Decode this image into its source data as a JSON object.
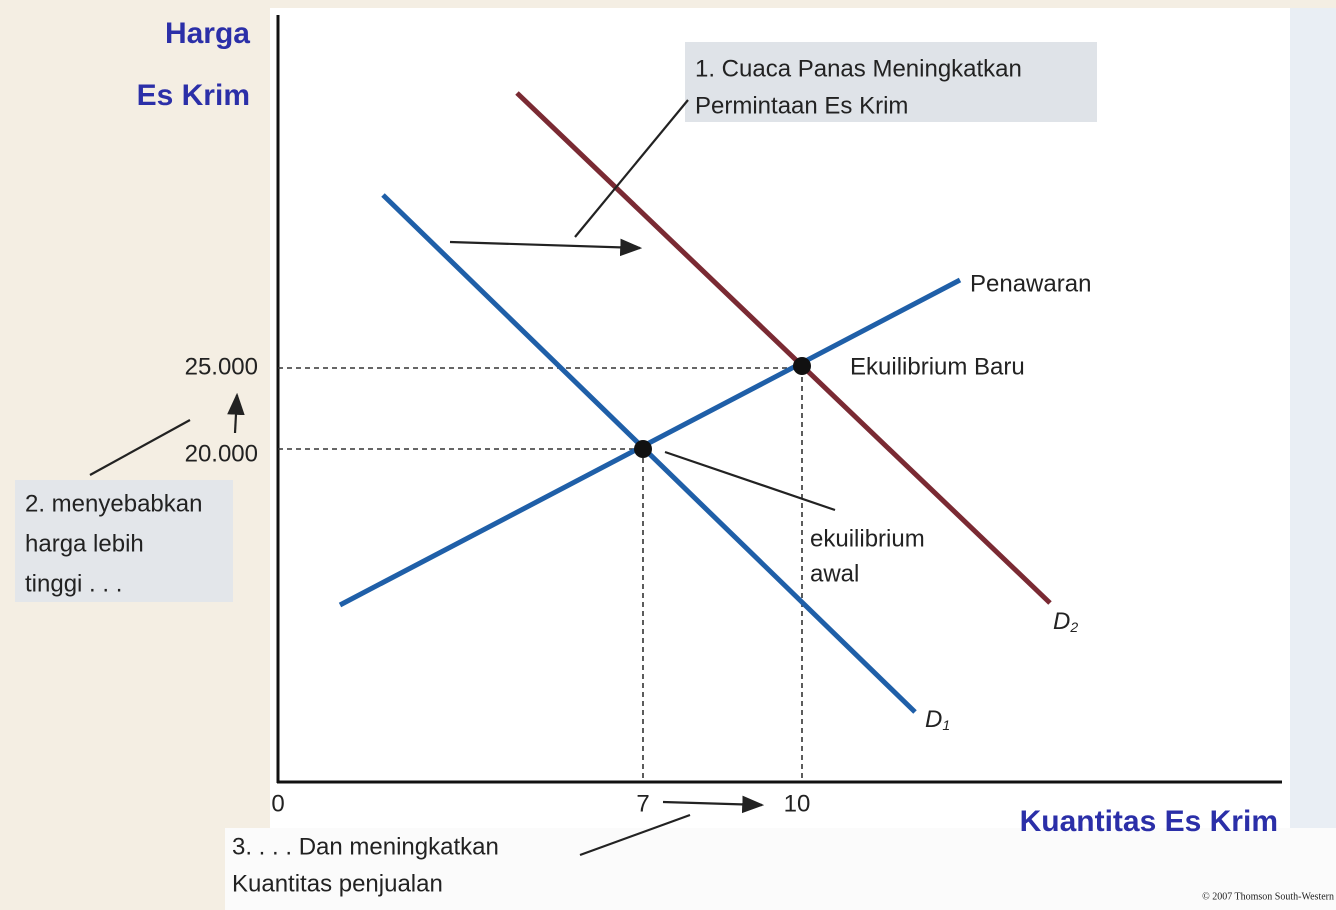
{
  "axes": {
    "y_title": [
      "Harga",
      "Es Krim"
    ],
    "x_title": "Kuantitas Es Krim",
    "y_ticks": [
      "25.000",
      "20.000"
    ],
    "x_ticks": [
      "0",
      "7",
      "10"
    ]
  },
  "curves": {
    "supply": "Penawaran",
    "d1": {
      "symbol": "D",
      "subscript": "1"
    },
    "d2": {
      "symbol": "D",
      "subscript": "2"
    }
  },
  "points": {
    "new": "Ekuilibrium Baru",
    "initial": [
      "ekuilibrium",
      "awal"
    ]
  },
  "notes": {
    "demand_shift": [
      "1. Cuaca Panas Meningkatkan",
      "Permintaan Es Krim"
    ],
    "price": [
      "2. menyebabkan",
      "harga lebih",
      "tinggi . . ."
    ],
    "quantity": [
      "3. . . . Dan meningkatkan",
      "Kuantitas penjualan"
    ]
  },
  "footer": "© 2007 Thomson South-Western"
}
